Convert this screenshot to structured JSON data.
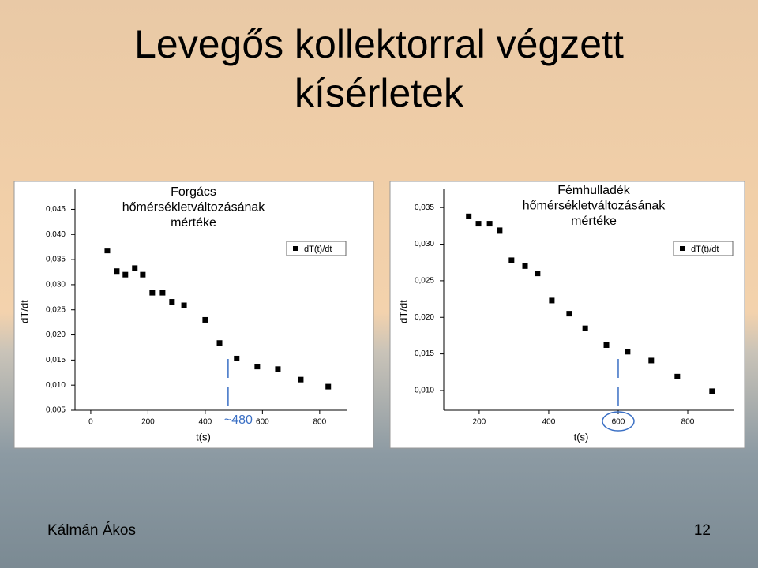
{
  "slide_title": [
    "Levegős kollektorral végzett",
    "kísérletek"
  ],
  "author": "Kálmán Ákos",
  "page_number": "12",
  "chart_data": [
    {
      "type": "scatter",
      "title": [
        "Forgács",
        "hőmérsékletváltozásának",
        "mértéke"
      ],
      "x_label": "t(s)",
      "y_label": "dT/dt",
      "x": [
        58,
        91,
        121,
        154,
        182,
        215,
        251,
        284,
        326,
        400,
        450,
        510,
        582,
        654,
        734,
        830
      ],
      "series": [
        {
          "name": "dT(t)/dt",
          "color": "#000000",
          "values": [
            0.0368,
            0.0327,
            0.032,
            0.0333,
            0.032,
            0.0284,
            0.0284,
            0.0266,
            0.0259,
            0.023,
            0.0184,
            0.0153,
            0.0137,
            0.0132,
            0.0111,
            0.0097
          ]
        }
      ],
      "xlim": [
        -55,
        897
      ],
      "ylim": [
        0.005,
        0.049
      ],
      "xticks": [
        0,
        200,
        400,
        600,
        800
      ],
      "yticks": [
        {
          "value": 0.045,
          "label": "0,045"
        },
        {
          "value": 0.04,
          "label": "0,040"
        },
        {
          "value": 0.035,
          "label": "0,035"
        },
        {
          "value": 0.03,
          "label": "0,030"
        },
        {
          "value": 0.025,
          "label": "0,025"
        },
        {
          "value": 0.02,
          "label": "0,020"
        },
        {
          "value": 0.015,
          "label": "0,015"
        },
        {
          "value": 0.01,
          "label": "0,010"
        },
        {
          "value": 0.005,
          "label": "0,005"
        }
      ],
      "marker_x": 480,
      "annotation": "~480",
      "annotation_color": "#3a6fc4",
      "grid": false,
      "legend": "upper right"
    },
    {
      "type": "scatter",
      "title": [
        "Fémhulladék",
        "hőmérsékletváltozásának",
        "mértéke"
      ],
      "x_label": "t(s)",
      "y_label": "dT/dt",
      "x": [
        170,
        198,
        230,
        259,
        293,
        332,
        368,
        409,
        459,
        505,
        566,
        627,
        695,
        770,
        870
      ],
      "series": [
        {
          "name": "dT(t)/dt",
          "color": "#000000",
          "values": [
            0.0338,
            0.0328,
            0.0328,
            0.0319,
            0.0278,
            0.027,
            0.026,
            0.0223,
            0.0205,
            0.0185,
            0.0162,
            0.0153,
            0.0141,
            0.0119,
            0.0099
          ]
        }
      ],
      "xlim": [
        98,
        934
      ],
      "ylim": [
        0.0073,
        0.0375
      ],
      "xticks": [
        200,
        400,
        600,
        800
      ],
      "yticks": [
        {
          "value": 0.035,
          "label": "0,035"
        },
        {
          "value": 0.03,
          "label": "0,030"
        },
        {
          "value": 0.025,
          "label": "0,025"
        },
        {
          "value": 0.02,
          "label": "0,020"
        },
        {
          "value": 0.015,
          "label": "0,015"
        },
        {
          "value": 0.01,
          "label": "0,010"
        }
      ],
      "marker_x": 600,
      "annotation_color": "#3a6fc4",
      "grid": false,
      "legend": "upper right"
    }
  ]
}
